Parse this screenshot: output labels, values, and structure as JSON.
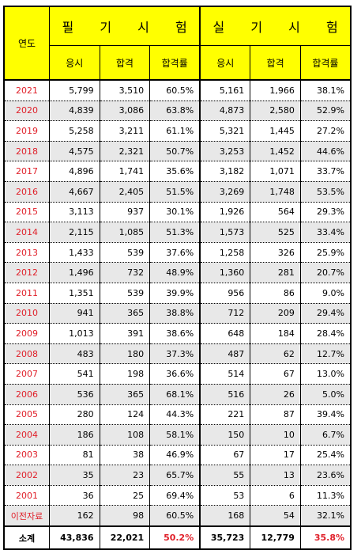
{
  "header": {
    "year_label": "연도",
    "written_label": "필 기 시 험",
    "practical_label": "실 기 시 험",
    "sub_labels": [
      "응시",
      "합격",
      "합격률",
      "응시",
      "합격",
      "합격률"
    ]
  },
  "rows": [
    {
      "year": "2021",
      "w_app": "5,799",
      "w_pass": "3,510",
      "w_rate": "60.5%",
      "p_app": "5,161",
      "p_pass": "1,966",
      "p_rate": "38.1%"
    },
    {
      "year": "2020",
      "w_app": "4,839",
      "w_pass": "3,086",
      "w_rate": "63.8%",
      "p_app": "4,873",
      "p_pass": "2,580",
      "p_rate": "52.9%"
    },
    {
      "year": "2019",
      "w_app": "5,258",
      "w_pass": "3,211",
      "w_rate": "61.1%",
      "p_app": "5,321",
      "p_pass": "1,445",
      "p_rate": "27.2%"
    },
    {
      "year": "2018",
      "w_app": "4,575",
      "w_pass": "2,321",
      "w_rate": "50.7%",
      "p_app": "3,253",
      "p_pass": "1,452",
      "p_rate": "44.6%"
    },
    {
      "year": "2017",
      "w_app": "4,896",
      "w_pass": "1,741",
      "w_rate": "35.6%",
      "p_app": "3,182",
      "p_pass": "1,071",
      "p_rate": "33.7%"
    },
    {
      "year": "2016",
      "w_app": "4,667",
      "w_pass": "2,405",
      "w_rate": "51.5%",
      "p_app": "3,269",
      "p_pass": "1,748",
      "p_rate": "53.5%"
    },
    {
      "year": "2015",
      "w_app": "3,113",
      "w_pass": "937",
      "w_rate": "30.1%",
      "p_app": "1,926",
      "p_pass": "564",
      "p_rate": "29.3%"
    },
    {
      "year": "2014",
      "w_app": "2,115",
      "w_pass": "1,085",
      "w_rate": "51.3%",
      "p_app": "1,573",
      "p_pass": "525",
      "p_rate": "33.4%"
    },
    {
      "year": "2013",
      "w_app": "1,433",
      "w_pass": "539",
      "w_rate": "37.6%",
      "p_app": "1,258",
      "p_pass": "326",
      "p_rate": "25.9%"
    },
    {
      "year": "2012",
      "w_app": "1,496",
      "w_pass": "732",
      "w_rate": "48.9%",
      "p_app": "1,360",
      "p_pass": "281",
      "p_rate": "20.7%"
    },
    {
      "year": "2011",
      "w_app": "1,351",
      "w_pass": "539",
      "w_rate": "39.9%",
      "p_app": "956",
      "p_pass": "86",
      "p_rate": "9.0%"
    },
    {
      "year": "2010",
      "w_app": "941",
      "w_pass": "365",
      "w_rate": "38.8%",
      "p_app": "712",
      "p_pass": "209",
      "p_rate": "29.4%"
    },
    {
      "year": "2009",
      "w_app": "1,013",
      "w_pass": "391",
      "w_rate": "38.6%",
      "p_app": "648",
      "p_pass": "184",
      "p_rate": "28.4%"
    },
    {
      "year": "2008",
      "w_app": "483",
      "w_pass": "180",
      "w_rate": "37.3%",
      "p_app": "487",
      "p_pass": "62",
      "p_rate": "12.7%"
    },
    {
      "year": "2007",
      "w_app": "541",
      "w_pass": "198",
      "w_rate": "36.6%",
      "p_app": "514",
      "p_pass": "67",
      "p_rate": "13.0%"
    },
    {
      "year": "2006",
      "w_app": "536",
      "w_pass": "365",
      "w_rate": "68.1%",
      "p_app": "516",
      "p_pass": "26",
      "p_rate": "5.0%"
    },
    {
      "year": "2005",
      "w_app": "280",
      "w_pass": "124",
      "w_rate": "44.3%",
      "p_app": "221",
      "p_pass": "87",
      "p_rate": "39.4%"
    },
    {
      "year": "2004",
      "w_app": "186",
      "w_pass": "108",
      "w_rate": "58.1%",
      "p_app": "150",
      "p_pass": "10",
      "p_rate": "6.7%"
    },
    {
      "year": "2003",
      "w_app": "81",
      "w_pass": "38",
      "w_rate": "46.9%",
      "p_app": "67",
      "p_pass": "17",
      "p_rate": "25.4%"
    },
    {
      "year": "2002",
      "w_app": "35",
      "w_pass": "23",
      "w_rate": "65.7%",
      "p_app": "55",
      "p_pass": "13",
      "p_rate": "23.6%"
    },
    {
      "year": "2001",
      "w_app": "36",
      "w_pass": "25",
      "w_rate": "69.4%",
      "p_app": "53",
      "p_pass": "6",
      "p_rate": "11.3%"
    },
    {
      "year": "이전자료",
      "w_app": "162",
      "w_pass": "98",
      "w_rate": "60.5%",
      "p_app": "168",
      "p_pass": "54",
      "p_rate": "32.1%"
    }
  ],
  "total": {
    "year": "소계",
    "w_app": "43,836",
    "w_pass": "22,021",
    "w_rate": "50.2%",
    "p_app": "35,723",
    "p_pass": "12,779",
    "p_rate": "35.8%"
  },
  "colors": {
    "header_bg": "#ffff00",
    "year_text": "#e0202a",
    "stripe_bg": "#e8e8e8",
    "highlight_rate": "#e0202a"
  }
}
